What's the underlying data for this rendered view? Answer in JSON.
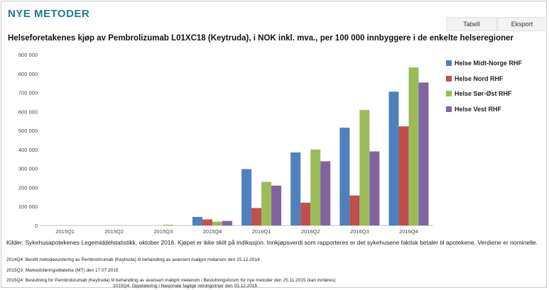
{
  "header": {
    "logo": "NYE METODER",
    "buttons": {
      "tabell": "Tabell",
      "eksport": "Eksport"
    }
  },
  "chart_data": {
    "type": "bar",
    "title": "Helseforetakenes kjøp av Pembrolizumab L01XC18 (Keytruda), i NOK inkl. mva., per 100 000 innbyggere i de enkelte helseregioner",
    "xlabel": "",
    "ylabel": "",
    "ylim": [
      0,
      900000
    ],
    "yticks": [
      {
        "value": 0,
        "label": "0"
      },
      {
        "value": 100000,
        "label": "100 000"
      },
      {
        "value": 200000,
        "label": "200 000"
      },
      {
        "value": 300000,
        "label": "300 000"
      },
      {
        "value": 400000,
        "label": "400 000"
      },
      {
        "value": 500000,
        "label": "500 000"
      },
      {
        "value": 600000,
        "label": "600 000"
      },
      {
        "value": 700000,
        "label": "700 000"
      },
      {
        "value": 800000,
        "label": "800 000"
      },
      {
        "value": 900000,
        "label": "900 000"
      }
    ],
    "grid": false,
    "legend_position": "right",
    "categories": [
      "2015Q1",
      "2015Q2",
      "2015Q3",
      "2015Q4",
      "2016Q1",
      "2016Q2",
      "2016Q3",
      "2016Q4"
    ],
    "series": [
      {
        "name": "Helse Midt-Norge RHF",
        "color": "#4f81bd",
        "values": [
          0,
          0,
          0,
          45000,
          297000,
          385000,
          515000,
          705000
        ]
      },
      {
        "name": "Helse Nord RHF",
        "color": "#c0504d",
        "values": [
          0,
          0,
          0,
          32000,
          92000,
          120000,
          158000,
          522000
        ]
      },
      {
        "name": "Helse Sør-Øst RHF",
        "color": "#9bbb59",
        "values": [
          0,
          0,
          4000,
          20000,
          230000,
          400000,
          608000,
          832000
        ]
      },
      {
        "name": "Helse Vest RHF",
        "color": "#8064a2",
        "values": [
          0,
          0,
          0,
          24000,
          210000,
          338000,
          390000,
          753000
        ]
      }
    ]
  },
  "footer": {
    "sources": "Kilder: Sykehusapotekenes Legemiddelstatistikk, oktober 2016. Kjøpet er ikke skilt på indikasjon. Innkjøpsverdi som rapporteres er det sykehusene faktisk betaler til apotekene. Verdiene er nominelle.",
    "notes": [
      "2014Q4: Bestilt metodevurdering av Pembrolizumab (Keytruda) til behandling av avansert malignt melanom den 15.12.2014",
      "2015Q3: Markedsføringstillatelse (MT) den 17.07.2015",
      "2015Q4: Beslutning for Pembrolizumab (Keytruda) til behandling av avansert malignt melanom i Beslutningsforum for nye metoder den 25.11.2015 (kan innføres)",
      "2015Q4: Oppdatering i Nasjonale faglige retningslinjer den 03.12.2015"
    ]
  }
}
